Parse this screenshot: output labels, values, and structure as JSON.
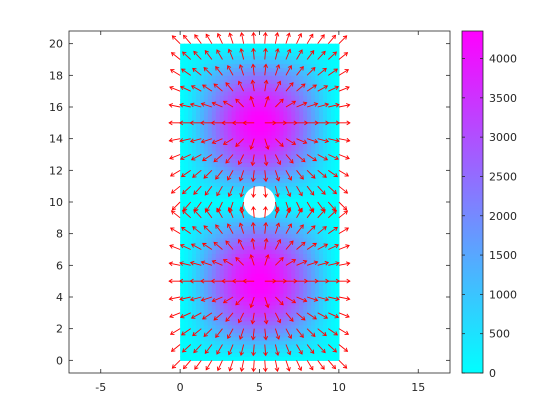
{
  "chart_data": {
    "type": "heatmap",
    "title": "",
    "xlabel": "",
    "ylabel": "",
    "xlim": [
      -7,
      17
    ],
    "ylim": [
      -0.8,
      20.8
    ],
    "xticks": [
      -5,
      0,
      5,
      10,
      15
    ],
    "yticks": [
      0,
      2,
      4,
      6,
      8,
      10,
      12,
      14,
      16,
      18,
      20
    ],
    "domain": {
      "x": [
        0,
        10
      ],
      "y": [
        0,
        20
      ]
    },
    "hole": {
      "center": [
        5,
        10
      ],
      "radius": 1
    },
    "colormap": "cool",
    "color_range": [
      0,
      4350
    ],
    "colorbar_ticks": [
      0,
      500,
      1000,
      1500,
      2000,
      2500,
      3000,
      3500,
      4000
    ],
    "peaks": [
      {
        "x": 5,
        "y": 5,
        "value": 4350
      },
      {
        "x": 5,
        "y": 15,
        "value": 4350
      }
    ],
    "vector_field": {
      "color": "#ff0000",
      "x_spacing": 0.667,
      "y_spacing": 1.0,
      "direction": "outward-from-peaks"
    },
    "grid": false,
    "legend": "colorbar-right"
  },
  "colors": {
    "cool_low": "#00ffff",
    "cool_high": "#ff00ff",
    "arrow": "#ff0000",
    "axis": "#262626"
  }
}
